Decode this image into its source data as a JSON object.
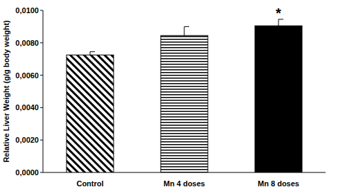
{
  "chart_data": {
    "type": "bar",
    "y_label": "Relative Liver Weight (g/g body weight)",
    "categories": [
      "Control",
      "Mn 4 doses",
      "Mn 8 doses"
    ],
    "values": [
      0.00725,
      0.00845,
      0.00905
    ],
    "errors": [
      0.0002,
      0.00055,
      0.0004
    ],
    "colors": [
      "#000000",
      "#000000",
      "#000000"
    ],
    "ylim": [
      0,
      0.01
    ],
    "yticks": [
      {
        "value": 0,
        "label": "0,0000"
      },
      {
        "value": 0.002,
        "label": "0,0020"
      },
      {
        "value": 0.004,
        "label": "0,0040"
      },
      {
        "value": 0.006,
        "label": "0,0060"
      },
      {
        "value": 0.008,
        "label": "0,0080"
      },
      {
        "value": 0.01,
        "label": "0,0100"
      }
    ],
    "annotations": [
      {
        "text": "*",
        "index": 2
      }
    ],
    "grid": false
  }
}
